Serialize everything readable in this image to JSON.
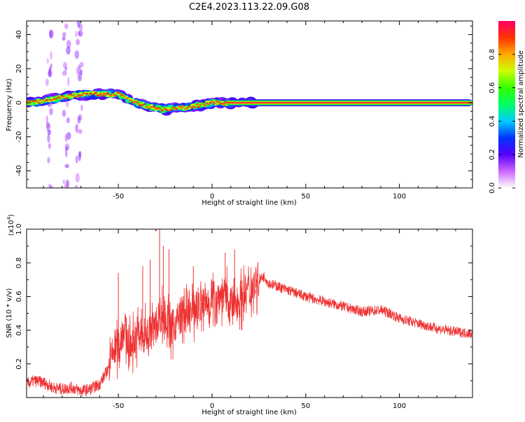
{
  "figure": {
    "title": "C2E4.2023.113.22.09.G08"
  },
  "chart_data": [
    {
      "type": "heatmap",
      "xlabel": "Height of straight line (km)",
      "ylabel": "Frequency (Hz)",
      "xlim": [
        -99,
        139
      ],
      "ylim": [
        -50,
        48
      ],
      "xticks": [
        -50,
        0,
        50,
        100
      ],
      "yticks": [
        -40,
        -20,
        0,
        20,
        40
      ],
      "colorbar": {
        "label": "Normalized spectral amplitude",
        "range": [
          0,
          1
        ],
        "ticks": [
          "0.0",
          "0.2",
          "0.4",
          "0.6",
          "0.8"
        ],
        "colors": [
          "#ffffff",
          "#cc66ff",
          "#5500ff",
          "#0033ff",
          "#00ccff",
          "#00ff66",
          "#33ff00",
          "#ccff00",
          "#ffaa00",
          "#ff3300",
          "#ff0066"
        ]
      },
      "ridge": {
        "x": [
          -99,
          -90,
          -80,
          -70,
          -60,
          -50,
          -45,
          -40,
          -35,
          -30,
          -25,
          -20,
          -15,
          -10,
          -5,
          0,
          5,
          10,
          15,
          20,
          139
        ],
        "y": [
          0,
          1,
          3,
          5,
          5,
          5,
          2,
          0,
          -2,
          -3,
          -4,
          -3,
          -3,
          -2,
          -1,
          0,
          0,
          0,
          0,
          0,
          0
        ],
        "steady_from_x": 8
      },
      "sidelobe_columns_x": [
        -87,
        -78,
        -71
      ]
    },
    {
      "type": "line",
      "xlabel": "Height of straight line (km)",
      "ylabel": "SNR (10 * v/v)",
      "y_multiplier": "(x10",
      "y_multiplier_exp": "4",
      "y_multiplier_close": ")",
      "xlim": [
        -99,
        139
      ],
      "ylim": [
        0,
        1.0
      ],
      "xticks": [
        -50,
        0,
        50,
        100
      ],
      "yticks": [
        0.2,
        0.4,
        0.6,
        0.8,
        1.0
      ],
      "color": "#ee3333",
      "series": [
        {
          "x": [
            -99,
            -95,
            -90,
            -85,
            -80,
            -75,
            -70,
            -65,
            -60,
            -55,
            -52,
            -50,
            -47,
            -44,
            -40,
            -37,
            -33,
            -30,
            -28,
            -25,
            -22,
            -19,
            -16,
            -13,
            -10,
            -7,
            -4,
            0,
            3,
            6,
            10,
            13,
            16,
            20,
            25,
            28,
            30,
            35,
            40,
            50,
            60,
            70,
            80,
            90,
            95,
            100,
            110,
            120,
            130,
            139
          ],
          "y": [
            0.08,
            0.1,
            0.09,
            0.06,
            0.05,
            0.06,
            0.04,
            0.05,
            0.08,
            0.18,
            0.3,
            0.3,
            0.42,
            0.3,
            0.38,
            0.35,
            0.4,
            0.42,
            0.5,
            0.48,
            0.4,
            0.45,
            0.5,
            0.48,
            0.52,
            0.55,
            0.55,
            0.58,
            0.6,
            0.62,
            0.55,
            0.56,
            0.6,
            0.65,
            0.7,
            0.72,
            0.68,
            0.66,
            0.64,
            0.6,
            0.57,
            0.54,
            0.51,
            0.52,
            0.5,
            0.47,
            0.44,
            0.41,
            0.39,
            0.38
          ]
        }
      ],
      "spikes": [
        {
          "x": -50,
          "y": 0.74
        },
        {
          "x": -37,
          "y": 0.78
        },
        {
          "x": -33,
          "y": 0.82
        },
        {
          "x": -28,
          "y": 1.0
        },
        {
          "x": -26,
          "y": 0.9
        },
        {
          "x": -23,
          "y": 0.88
        },
        {
          "x": -10,
          "y": 0.78
        },
        {
          "x": 7,
          "y": 0.86
        },
        {
          "x": 12,
          "y": 0.88
        }
      ]
    }
  ]
}
